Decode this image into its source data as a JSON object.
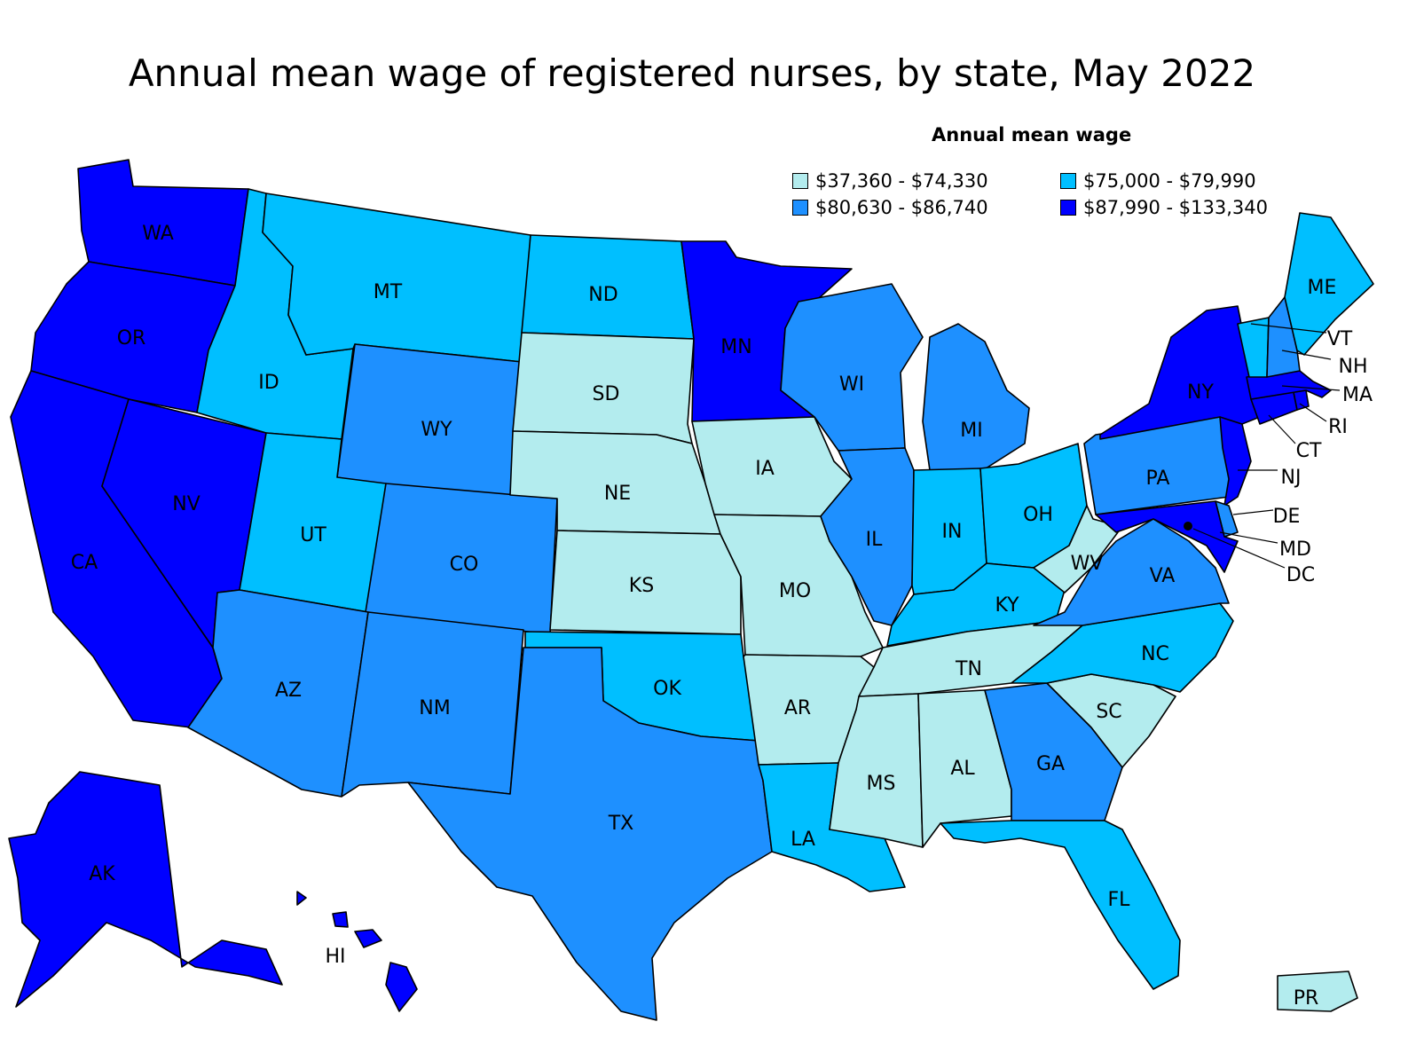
{
  "title": "Annual mean wage of registered nurses, by state, May 2022",
  "legend": {
    "title": "Annual mean wage",
    "items": [
      {
        "range": "$37,360 - $74,330",
        "color": "#b3ecee"
      },
      {
        "range": "$75,000 - $79,990",
        "color": "#00bfff"
      },
      {
        "range": "$80,630 - $86,740",
        "color": "#1e90ff"
      },
      {
        "range": "$87,990 - $133,340",
        "color": "#0000ff"
      }
    ]
  },
  "states": {
    "WA": {
      "label": "WA",
      "tier": 3
    },
    "OR": {
      "label": "OR",
      "tier": 3
    },
    "CA": {
      "label": "CA",
      "tier": 3
    },
    "NV": {
      "label": "NV",
      "tier": 3
    },
    "ID": {
      "label": "ID",
      "tier": 1
    },
    "MT": {
      "label": "MT",
      "tier": 1
    },
    "WY": {
      "label": "WY",
      "tier": 2
    },
    "UT": {
      "label": "UT",
      "tier": 1
    },
    "CO": {
      "label": "CO",
      "tier": 2
    },
    "AZ": {
      "label": "AZ",
      "tier": 2
    },
    "NM": {
      "label": "NM",
      "tier": 2
    },
    "ND": {
      "label": "ND",
      "tier": 1
    },
    "SD": {
      "label": "SD",
      "tier": 0
    },
    "NE": {
      "label": "NE",
      "tier": 0
    },
    "KS": {
      "label": "KS",
      "tier": 0
    },
    "OK": {
      "label": "OK",
      "tier": 1
    },
    "TX": {
      "label": "TX",
      "tier": 2
    },
    "MN": {
      "label": "MN",
      "tier": 3
    },
    "IA": {
      "label": "IA",
      "tier": 0
    },
    "MO": {
      "label": "MO",
      "tier": 0
    },
    "AR": {
      "label": "AR",
      "tier": 0
    },
    "LA": {
      "label": "LA",
      "tier": 1
    },
    "WI": {
      "label": "WI",
      "tier": 2
    },
    "IL": {
      "label": "IL",
      "tier": 2
    },
    "MI": {
      "label": "MI",
      "tier": 2
    },
    "IN": {
      "label": "IN",
      "tier": 1
    },
    "OH": {
      "label": "OH",
      "tier": 1
    },
    "KY": {
      "label": "KY",
      "tier": 1
    },
    "TN": {
      "label": "TN",
      "tier": 0
    },
    "MS": {
      "label": "MS",
      "tier": 0
    },
    "AL": {
      "label": "AL",
      "tier": 0
    },
    "GA": {
      "label": "GA",
      "tier": 2
    },
    "FL": {
      "label": "FL",
      "tier": 1
    },
    "SC": {
      "label": "SC",
      "tier": 0
    },
    "NC": {
      "label": "NC",
      "tier": 1
    },
    "VA": {
      "label": "VA",
      "tier": 2
    },
    "WV": {
      "label": "WV",
      "tier": 0
    },
    "PA": {
      "label": "PA",
      "tier": 2
    },
    "NY": {
      "label": "NY",
      "tier": 3
    },
    "NJ": {
      "label": "NJ",
      "tier": 3
    },
    "DE": {
      "label": "DE",
      "tier": 2
    },
    "MD": {
      "label": "MD",
      "tier": 3
    },
    "DC": {
      "label": "DC",
      "tier": 3
    },
    "CT": {
      "label": "CT",
      "tier": 3
    },
    "RI": {
      "label": "RI",
      "tier": 3
    },
    "MA": {
      "label": "MA",
      "tier": 3
    },
    "VT": {
      "label": "VT",
      "tier": 1
    },
    "NH": {
      "label": "NH",
      "tier": 2
    },
    "ME": {
      "label": "ME",
      "tier": 1
    },
    "AK": {
      "label": "AK",
      "tier": 3
    },
    "HI": {
      "label": "HI",
      "tier": 3
    },
    "PR": {
      "label": "PR",
      "tier": 0
    }
  }
}
